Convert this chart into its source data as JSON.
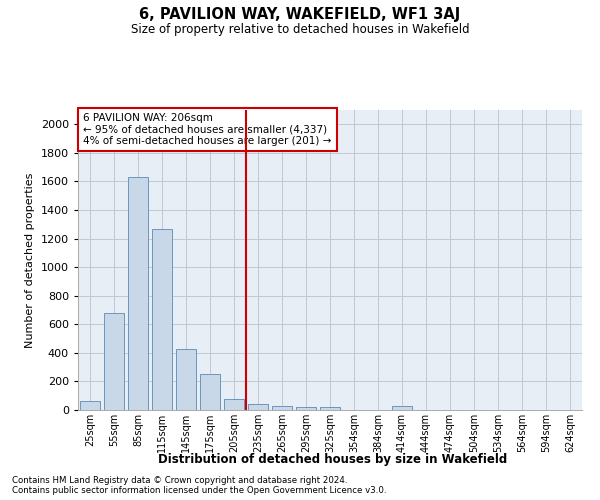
{
  "title": "6, PAVILION WAY, WAKEFIELD, WF1 3AJ",
  "subtitle": "Size of property relative to detached houses in Wakefield",
  "xlabel": "Distribution of detached houses by size in Wakefield",
  "ylabel": "Number of detached properties",
  "categories": [
    "25sqm",
    "55sqm",
    "85sqm",
    "115sqm",
    "145sqm",
    "175sqm",
    "205sqm",
    "235sqm",
    "265sqm",
    "295sqm",
    "325sqm",
    "354sqm",
    "384sqm",
    "414sqm",
    "444sqm",
    "474sqm",
    "504sqm",
    "534sqm",
    "564sqm",
    "594sqm",
    "624sqm"
  ],
  "values": [
    60,
    680,
    1630,
    1270,
    430,
    250,
    80,
    45,
    25,
    20,
    20,
    0,
    0,
    25,
    0,
    0,
    0,
    0,
    0,
    0,
    0
  ],
  "bar_color": "#c8d8e8",
  "bar_edge_color": "#5a8ab5",
  "grid_color": "#c0c8d8",
  "background_color": "#e8eef5",
  "vline_x_idx": 6,
  "vline_color": "#cc0000",
  "annotation_text": "6 PAVILION WAY: 206sqm\n← 95% of detached houses are smaller (4,337)\n4% of semi-detached houses are larger (201) →",
  "annotation_box_color": "#cc0000",
  "ylim": [
    0,
    2100
  ],
  "yticks": [
    0,
    200,
    400,
    600,
    800,
    1000,
    1200,
    1400,
    1600,
    1800,
    2000
  ],
  "footnote1": "Contains HM Land Registry data © Crown copyright and database right 2024.",
  "footnote2": "Contains public sector information licensed under the Open Government Licence v3.0."
}
